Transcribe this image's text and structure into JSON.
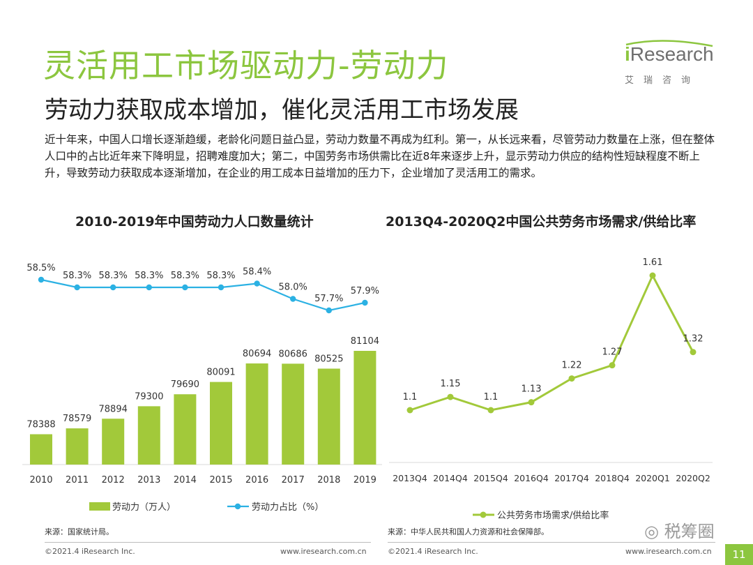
{
  "header": {
    "title": "灵活用工市场驱动力-劳动力",
    "subtitle": "劳动力获取成本增加，催化灵活用工市场发展",
    "logo_text_prefix": "i",
    "logo_text_main": "Research",
    "logo_cn": "艾瑞咨询"
  },
  "intro": "近十年来，中国人口增长逐渐趋缓，老龄化问题日益凸显，劳动力数量不再成为红利。第一，从长远来看，尽管劳动力数量在上涨，但在整体人口中的占比近年来下降明显，招聘难度加大；第二，中国劳务市场供需比在近8年来逐步上升，显示劳动力供应的结构性短缺程度不断上升，导致劳动力获取成本逐渐增加，在企业的用工成本日益增加的压力下，企业增加了灵活用工的需求。",
  "chart_data": [
    {
      "type": "bar+line",
      "title": "2010-2019年中国劳动力人口数量统计",
      "categories": [
        "2010",
        "2011",
        "2012",
        "2013",
        "2014",
        "2015",
        "2016",
        "2017",
        "2018",
        "2019"
      ],
      "series": [
        {
          "name": "劳动力（万人）",
          "type": "bar",
          "values": [
            78388,
            78579,
            78894,
            79300,
            79690,
            80091,
            80694,
            80686,
            80525,
            81104
          ]
        },
        {
          "name": "劳动力占比（%）",
          "type": "line",
          "values": [
            58.5,
            58.3,
            58.3,
            58.3,
            58.3,
            58.3,
            58.4,
            58.0,
            57.7,
            57.9
          ],
          "labels": [
            "58.5%",
            "58.3%",
            "58.3%",
            "58.3%",
            "58.3%",
            "58.3%",
            "58.4%",
            "58.0%",
            "57.7%",
            "57.9%"
          ]
        }
      ],
      "legend_position": "bottom",
      "grid": false
    },
    {
      "type": "line",
      "title": "2013Q4-2020Q2中国公共劳务市场需求/供给比率",
      "categories": [
        "2013Q4",
        "2014Q4",
        "2015Q4",
        "2016Q4",
        "2017Q4",
        "2018Q4",
        "2020Q1",
        "2020Q2"
      ],
      "series": [
        {
          "name": "公共劳务市场需求/供给比率",
          "values": [
            1.1,
            1.15,
            1.1,
            1.13,
            1.22,
            1.27,
            1.61,
            1.32
          ],
          "labels": [
            "1.1",
            "1.15",
            "1.1",
            "1.13",
            "1.22",
            "1.27",
            "1.61",
            "1.32"
          ]
        }
      ],
      "legend_position": "bottom",
      "grid": false
    }
  ],
  "sources": {
    "left": "来源：国家统计局。",
    "right": "来源：中华人民共和国人力资源和社会保障部。"
  },
  "footer": {
    "copyright": "©2021.4 iResearch Inc.",
    "url": "www.iresearch.com.cn",
    "page": "11"
  },
  "watermark": "税筹圈",
  "colors": {
    "bar": "#a2c93a",
    "line_pct": "#2bb1e3",
    "line_ratio": "#a2c93a",
    "title_green": "#8cc63f"
  }
}
